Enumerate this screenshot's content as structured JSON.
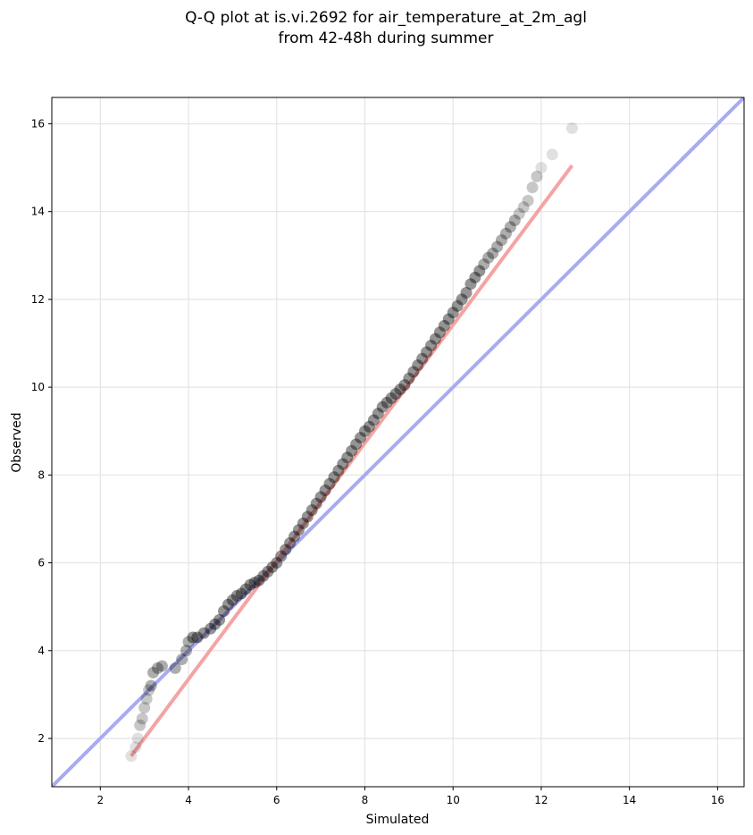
{
  "chart_data": {
    "type": "scatter",
    "title": "Q-Q plot at is.vi.2692 for air_temperature_at_2m_agl",
    "subtitle": "from 42-48h during summer",
    "xlabel": "Simulated",
    "ylabel": "Observed",
    "xlim": [
      0.9,
      16.6
    ],
    "ylim": [
      0.9,
      16.6
    ],
    "xticks": [
      2,
      4,
      6,
      8,
      10,
      12,
      14,
      16
    ],
    "yticks": [
      2,
      4,
      6,
      8,
      10,
      12,
      14,
      16
    ],
    "xtick_labels": [
      "2",
      "4",
      "6",
      "8",
      "10",
      "12",
      "14",
      "16"
    ],
    "ytick_labels": [
      "2",
      "4",
      "6",
      "8",
      "10",
      "12",
      "14",
      "16"
    ],
    "grid": true,
    "colors": {
      "points": "#000000",
      "identity_line": "#aaaaf2",
      "fit_line": "#f5a3a3"
    },
    "identity_line": {
      "x": [
        0.9,
        16.6
      ],
      "y": [
        0.9,
        16.6
      ]
    },
    "fit_line": {
      "x": [
        2.7,
        12.7
      ],
      "y": [
        1.6,
        15.05
      ]
    },
    "points": {
      "x": [
        2.7,
        2.8,
        2.85,
        2.9,
        2.95,
        3.0,
        3.05,
        3.1,
        3.15,
        3.2,
        3.3,
        3.4,
        3.7,
        3.85,
        3.95,
        4.0,
        4.1,
        4.2,
        4.35,
        4.5,
        4.6,
        4.7,
        4.8,
        4.9,
        5.0,
        5.1,
        5.2,
        5.3,
        5.4,
        5.5,
        5.6,
        5.7,
        5.8,
        5.9,
        6.0,
        6.1,
        6.2,
        6.3,
        6.4,
        6.5,
        6.6,
        6.7,
        6.8,
        6.9,
        7.0,
        7.1,
        7.2,
        7.3,
        7.4,
        7.5,
        7.6,
        7.7,
        7.8,
        7.9,
        8.0,
        8.1,
        8.2,
        8.3,
        8.4,
        8.5,
        8.6,
        8.7,
        8.8,
        8.9,
        9.0,
        9.1,
        9.2,
        9.3,
        9.4,
        9.5,
        9.6,
        9.7,
        9.8,
        9.9,
        10.0,
        10.1,
        10.2,
        10.3,
        10.4,
        10.5,
        10.6,
        10.7,
        10.8,
        10.9,
        11.0,
        11.1,
        11.2,
        11.3,
        11.4,
        11.5,
        11.6,
        11.7,
        11.8,
        11.9,
        12.0,
        12.25,
        12.7
      ],
      "y": [
        1.6,
        1.8,
        2.0,
        2.3,
        2.45,
        2.7,
        2.9,
        3.1,
        3.2,
        3.5,
        3.6,
        3.65,
        3.6,
        3.8,
        4.0,
        4.2,
        4.3,
        4.3,
        4.4,
        4.5,
        4.6,
        4.7,
        4.9,
        5.05,
        5.15,
        5.25,
        5.3,
        5.4,
        5.5,
        5.55,
        5.6,
        5.7,
        5.8,
        5.9,
        6.0,
        6.15,
        6.3,
        6.45,
        6.6,
        6.75,
        6.9,
        7.05,
        7.2,
        7.35,
        7.5,
        7.65,
        7.8,
        7.95,
        8.1,
        8.25,
        8.4,
        8.55,
        8.7,
        8.85,
        9.0,
        9.1,
        9.25,
        9.4,
        9.55,
        9.65,
        9.75,
        9.85,
        9.95,
        10.05,
        10.2,
        10.35,
        10.5,
        10.65,
        10.8,
        10.95,
        11.1,
        11.25,
        11.4,
        11.55,
        11.7,
        11.85,
        12.0,
        12.15,
        12.35,
        12.5,
        12.65,
        12.8,
        12.95,
        13.05,
        13.2,
        13.35,
        13.5,
        13.65,
        13.8,
        13.95,
        14.1,
        14.25,
        14.55,
        14.8,
        15.0,
        15.3,
        15.9
      ]
    }
  }
}
